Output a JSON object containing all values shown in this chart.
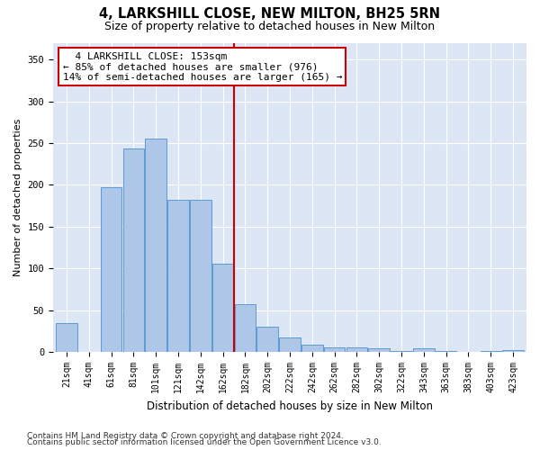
{
  "title1": "4, LARKSHILL CLOSE, NEW MILTON, BH25 5RN",
  "title2": "Size of property relative to detached houses in New Milton",
  "xlabel": "Distribution of detached houses by size in New Milton",
  "ylabel": "Number of detached properties",
  "categories": [
    "21sqm",
    "41sqm",
    "61sqm",
    "81sqm",
    "101sqm",
    "121sqm",
    "142sqm",
    "162sqm",
    "182sqm",
    "202sqm",
    "222sqm",
    "242sqm",
    "262sqm",
    "282sqm",
    "302sqm",
    "322sqm",
    "343sqm",
    "363sqm",
    "383sqm",
    "403sqm",
    "423sqm"
  ],
  "values": [
    35,
    0,
    197,
    243,
    255,
    182,
    182,
    106,
    57,
    30,
    17,
    9,
    6,
    6,
    4,
    1,
    4,
    1,
    0,
    1,
    2
  ],
  "bar_color": "#aec6e8",
  "bar_edgecolor": "#5b9bd5",
  "vline_x_index": 7.5,
  "vline_color": "#cc0000",
  "annotation_line1": "  4 LARKSHILL CLOSE: 153sqm",
  "annotation_line2": "← 85% of detached houses are smaller (976)",
  "annotation_line3": "14% of semi-detached houses are larger (165) →",
  "annotation_box_color": "#ffffff",
  "annotation_box_edgecolor": "#cc0000",
  "ylim": [
    0,
    370
  ],
  "yticks": [
    0,
    50,
    100,
    150,
    200,
    250,
    300,
    350
  ],
  "background_color": "#dce6f5",
  "grid_color": "#ffffff",
  "footer1": "Contains HM Land Registry data © Crown copyright and database right 2024.",
  "footer2": "Contains public sector information licensed under the Open Government Licence v3.0."
}
